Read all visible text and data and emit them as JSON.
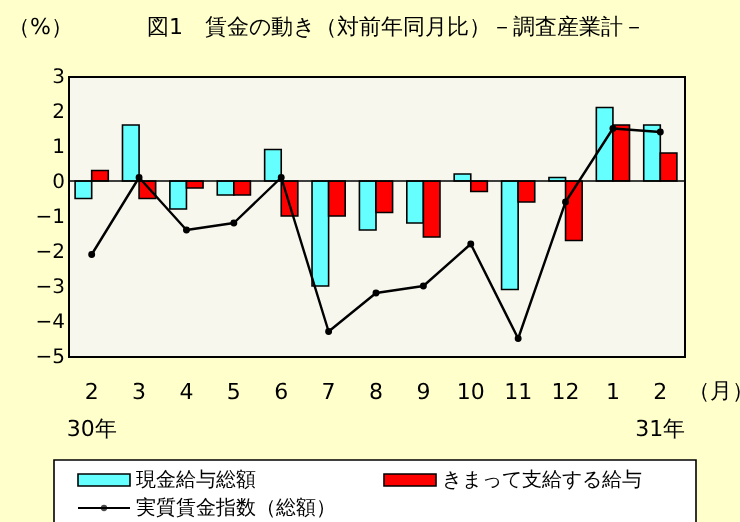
{
  "chart_data": {
    "type": "bar",
    "title": "図1　賃金の動き（対前年同月比）－調査産業計－",
    "ylabel": "（%）",
    "xlabel": "（月）",
    "categories": [
      "2",
      "3",
      "4",
      "5",
      "6",
      "7",
      "8",
      "9",
      "10",
      "11",
      "12",
      "1",
      "2"
    ],
    "series": [
      {
        "name": "現金給与総額",
        "color": "#66ffff",
        "values": [
          -0.5,
          1.6,
          -0.8,
          -0.4,
          0.9,
          -3.0,
          -1.4,
          -1.2,
          0.2,
          -3.1,
          0.1,
          2.1,
          1.6
        ]
      },
      {
        "name": "きまって支給する給与",
        "color": "#ff0000",
        "values": [
          0.3,
          -0.5,
          -0.2,
          -0.4,
          -1.0,
          -1.0,
          -0.9,
          -1.6,
          -0.3,
          -0.6,
          -1.7,
          1.6,
          0.8
        ]
      },
      {
        "name": "実質賃金指数（総額）",
        "type": "line",
        "color": "#000000",
        "marker": "circle",
        "values": [
          -2.1,
          0.1,
          -1.4,
          -1.2,
          0.1,
          -4.3,
          -3.2,
          -3.0,
          -1.8,
          -4.5,
          -0.6,
          1.5,
          1.4
        ]
      }
    ],
    "ylim": [
      -5,
      3
    ],
    "yticks": [
      -5,
      -4,
      -3,
      -2,
      -1,
      0,
      1,
      2,
      3
    ],
    "grid": false,
    "ref_lines": [
      {
        "axis": "y",
        "value": 0,
        "color": "#000000"
      }
    ],
    "legend": "bottom",
    "annotations": [
      "30年",
      "31年"
    ]
  }
}
